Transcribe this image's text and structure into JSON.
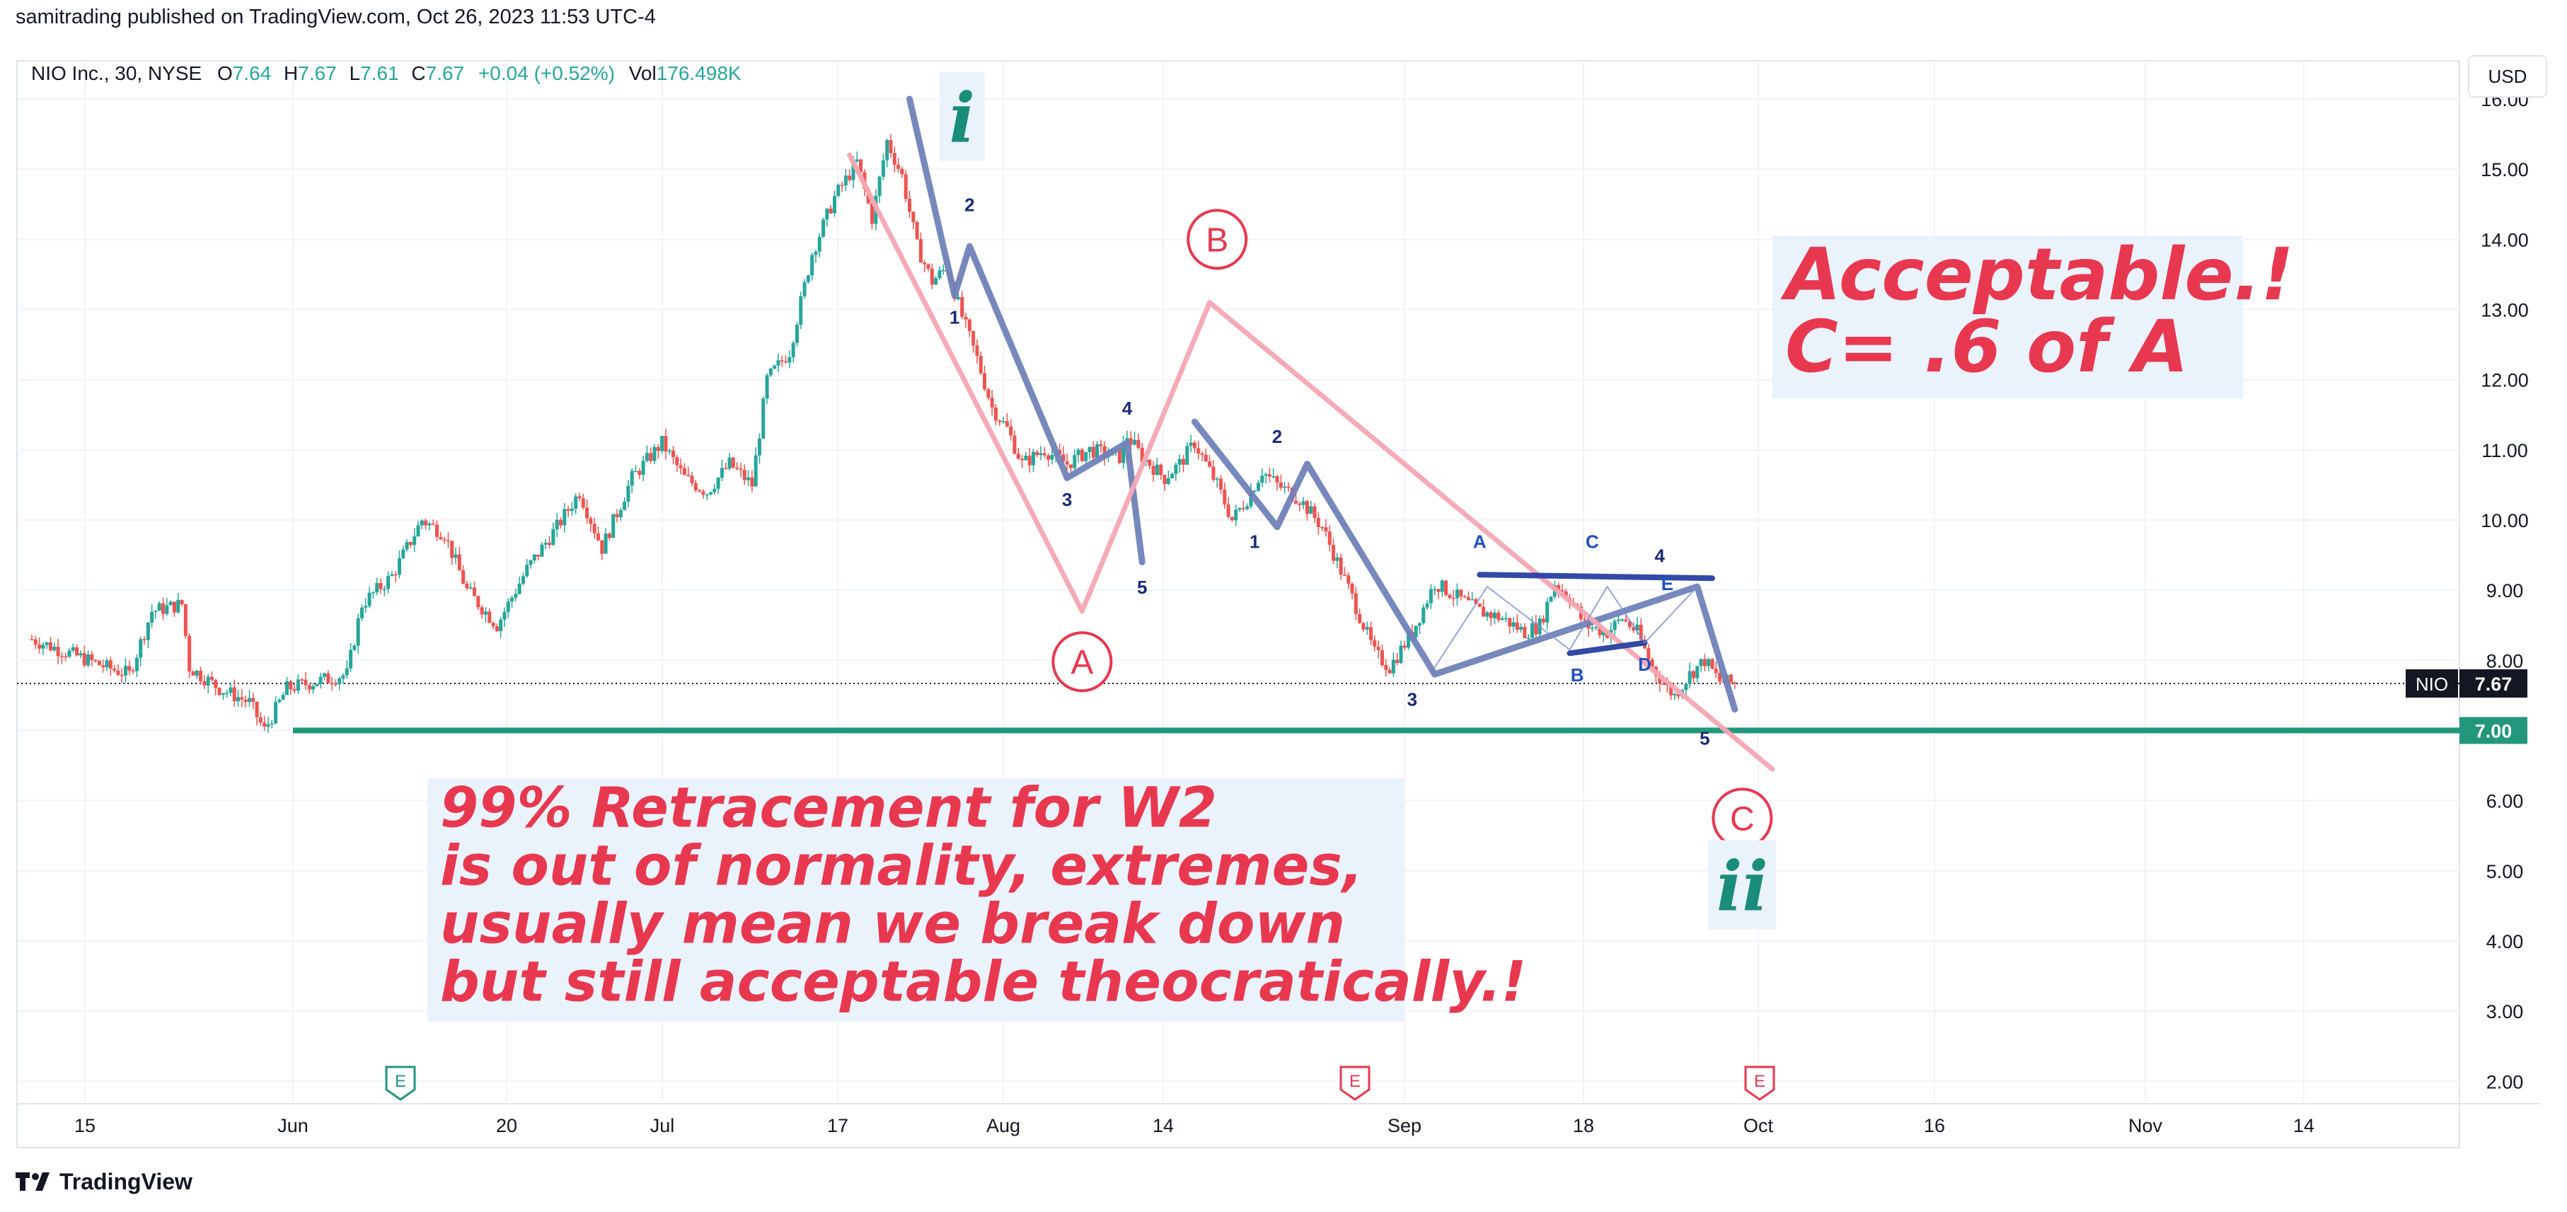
{
  "header": {
    "published": "samitrading published on TradingView.com, Oct 26, 2023 11:53 UTC-4"
  },
  "legend": {
    "symbol": "NIO Inc., 30, NYSE",
    "o_label": "O",
    "o_value": "7.64",
    "h_label": "H",
    "h_value": "7.67",
    "l_label": "L",
    "l_value": "7.61",
    "c_label": "C",
    "c_value": "7.67",
    "change": "+0.04 (+0.52%)",
    "vol_label": "Vol",
    "vol_value": "176.498K"
  },
  "currency_button": "USD",
  "footer": {
    "brand": "TradingView",
    "icon": "tradingview-logo-icon"
  },
  "colors": {
    "up": "#26a69a",
    "down": "#ef5350",
    "wave_blue": "#6f82b8",
    "dark_blue": "#2840a0",
    "abc_pink": "#f4a6b3",
    "support_green": "#22977b",
    "annotation_red": "#e8384f",
    "wave_teal": "#1a8c7a",
    "label_bg": "#eaf2fc"
  },
  "chart_data": {
    "type": "candlestick",
    "symbol": "NIO",
    "interval": "30",
    "ylim": [
      1.6,
      16.2
    ],
    "y_ticks": [
      "2.00",
      "3.00",
      "4.00",
      "5.00",
      "6.00",
      "7.00",
      "8.00",
      "9.00",
      "10.00",
      "11.00",
      "12.00",
      "13.00",
      "14.00",
      "15.00",
      "16.00"
    ],
    "x_ticks": [
      "15",
      "Jun",
      "20",
      "Jul",
      "17",
      "Aug",
      "14",
      "Sep",
      "18",
      "Oct",
      "16",
      "Nov",
      "14"
    ],
    "last_price": {
      "label": "NIO",
      "value": "7.67",
      "y": 7.67
    },
    "support_line": {
      "value": "7.00",
      "y": 7.0
    },
    "earnings_markers": [
      "E",
      "E",
      "E"
    ],
    "price_path": [
      {
        "d": 0,
        "p": 8.3
      },
      {
        "d": 5,
        "p": 8.1
      },
      {
        "d": 10,
        "p": 7.9
      },
      {
        "d": 13,
        "p": 7.8
      },
      {
        "d": 16,
        "p": 8.7
      },
      {
        "d": 20,
        "p": 8.8
      },
      {
        "d": 21,
        "p": 7.9
      },
      {
        "d": 25,
        "p": 7.6
      },
      {
        "d": 29,
        "p": 7.4
      },
      {
        "d": 31,
        "p": 7.0
      },
      {
        "d": 34,
        "p": 7.6
      },
      {
        "d": 38,
        "p": 7.7
      },
      {
        "d": 42,
        "p": 7.8
      },
      {
        "d": 44,
        "p": 8.8
      },
      {
        "d": 48,
        "p": 9.2
      },
      {
        "d": 52,
        "p": 10.0
      },
      {
        "d": 55,
        "p": 9.8
      },
      {
        "d": 58,
        "p": 9.0
      },
      {
        "d": 62,
        "p": 8.5
      },
      {
        "d": 66,
        "p": 9.3
      },
      {
        "d": 70,
        "p": 9.9
      },
      {
        "d": 73,
        "p": 10.4
      },
      {
        "d": 76,
        "p": 9.6
      },
      {
        "d": 80,
        "p": 10.6
      },
      {
        "d": 84,
        "p": 11.1
      },
      {
        "d": 87,
        "p": 10.6
      },
      {
        "d": 90,
        "p": 10.4
      },
      {
        "d": 93,
        "p": 10.8
      },
      {
        "d": 96,
        "p": 10.5
      },
      {
        "d": 98,
        "p": 12.0
      },
      {
        "d": 101,
        "p": 12.4
      },
      {
        "d": 104,
        "p": 13.8
      },
      {
        "d": 107,
        "p": 14.6
      },
      {
        "d": 110,
        "p": 15.1
      },
      {
        "d": 112,
        "p": 14.3
      },
      {
        "d": 114,
        "p": 15.4
      },
      {
        "d": 116,
        "p": 14.9
      },
      {
        "d": 118,
        "p": 13.9
      },
      {
        "d": 120,
        "p": 13.4
      },
      {
        "d": 122,
        "p": 13.6
      },
      {
        "d": 124,
        "p": 12.9
      },
      {
        "d": 126,
        "p": 12.3
      },
      {
        "d": 128,
        "p": 11.6
      },
      {
        "d": 130,
        "p": 11.3
      },
      {
        "d": 132,
        "p": 10.8
      },
      {
        "d": 135,
        "p": 11.0
      },
      {
        "d": 138,
        "p": 10.8
      },
      {
        "d": 141,
        "p": 11.0
      },
      {
        "d": 145,
        "p": 10.9
      },
      {
        "d": 146,
        "p": 11.2
      },
      {
        "d": 148,
        "p": 10.9
      },
      {
        "d": 151,
        "p": 10.6
      },
      {
        "d": 153,
        "p": 10.8
      },
      {
        "d": 155,
        "p": 11.1
      },
      {
        "d": 158,
        "p": 10.5
      },
      {
        "d": 160,
        "p": 10.0
      },
      {
        "d": 162,
        "p": 10.3
      },
      {
        "d": 164,
        "p": 10.7
      },
      {
        "d": 166,
        "p": 10.5
      },
      {
        "d": 169,
        "p": 10.3
      },
      {
        "d": 172,
        "p": 9.9
      },
      {
        "d": 176,
        "p": 8.9
      },
      {
        "d": 179,
        "p": 8.1
      },
      {
        "d": 181,
        "p": 7.9
      },
      {
        "d": 184,
        "p": 8.4
      },
      {
        "d": 187,
        "p": 9.1
      },
      {
        "d": 190,
        "p": 8.9
      },
      {
        "d": 193,
        "p": 8.7
      },
      {
        "d": 196,
        "p": 8.6
      },
      {
        "d": 199,
        "p": 8.4
      },
      {
        "d": 201,
        "p": 8.5
      },
      {
        "d": 203,
        "p": 9.1
      },
      {
        "d": 205,
        "p": 8.9
      },
      {
        "d": 207,
        "p": 8.5
      },
      {
        "d": 210,
        "p": 8.4
      },
      {
        "d": 212,
        "p": 8.6
      },
      {
        "d": 214,
        "p": 8.4
      },
      {
        "d": 216,
        "p": 7.9
      },
      {
        "d": 218,
        "p": 7.6
      },
      {
        "d": 219,
        "p": 7.5
      },
      {
        "d": 221,
        "p": 7.8
      },
      {
        "d": 223,
        "p": 8.0
      },
      {
        "d": 225,
        "p": 7.7
      },
      {
        "d": 227,
        "p": 7.67
      }
    ],
    "series": [
      {
        "name": "wave i",
        "points": [
          {
            "d": 117,
            "y": 16.0
          },
          {
            "d": 123,
            "y": 13.2
          },
          {
            "d": 125,
            "y": 13.9
          },
          {
            "d": 138,
            "y": 10.6
          },
          {
            "d": 146,
            "y": 11.1
          },
          {
            "d": 148,
            "y": 9.4
          }
        ]
      },
      {
        "name": "wave C",
        "points": [
          {
            "d": 155,
            "y": 11.4
          },
          {
            "d": 166,
            "y": 9.9
          },
          {
            "d": 170,
            "y": 10.8
          },
          {
            "d": 187,
            "y": 7.8
          },
          {
            "d": 222,
            "y": 9.05
          },
          {
            "d": 227,
            "y": 7.3
          }
        ]
      },
      {
        "name": "ABC",
        "points": [
          {
            "d": 109,
            "y": 15.2
          },
          {
            "d": 140,
            "y": 8.7
          },
          {
            "d": 157,
            "y": 13.1
          },
          {
            "d": 232,
            "y": 6.45
          }
        ]
      },
      {
        "name": "triangle upper",
        "points": [
          {
            "d": 193,
            "y": 9.22
          },
          {
            "d": 224,
            "y": 9.17
          }
        ]
      },
      {
        "name": "triangle lower",
        "points": [
          {
            "d": 205,
            "y": 8.1
          },
          {
            "d": 215,
            "y": 8.25
          }
        ]
      },
      {
        "name": "triangle thin",
        "points": [
          {
            "d": 187,
            "y": 7.9
          },
          {
            "d": 194,
            "y": 9.05
          },
          {
            "d": 205,
            "y": 8.15
          },
          {
            "d": 210,
            "y": 9.05
          },
          {
            "d": 215,
            "y": 8.25
          },
          {
            "d": 222,
            "y": 9.05
          }
        ]
      }
    ],
    "wave_labels": [
      {
        "text": "2",
        "d": 125,
        "y": 14.4,
        "color": "#1a2a7a"
      },
      {
        "text": "1",
        "d": 123,
        "y": 12.8,
        "color": "#1a2a7a"
      },
      {
        "text": "3",
        "d": 138,
        "y": 10.2,
        "color": "#1a2a7a"
      },
      {
        "text": "4",
        "d": 146,
        "y": 11.5,
        "color": "#1a2a7a"
      },
      {
        "text": "5",
        "d": 148,
        "y": 8.95,
        "color": "#1a2a7a"
      },
      {
        "text": "2",
        "d": 166,
        "y": 11.1,
        "color": "#1a2a7a"
      },
      {
        "text": "1",
        "d": 163,
        "y": 9.6,
        "color": "#1a2a7a"
      },
      {
        "text": "3",
        "d": 184,
        "y": 7.35,
        "color": "#1a2a7a"
      },
      {
        "text": "4",
        "d": 217,
        "y": 9.4,
        "color": "#1a2a7a"
      },
      {
        "text": "5",
        "d": 223,
        "y": 6.8,
        "color": "#1a2a7a"
      },
      {
        "text": "A",
        "d": 193,
        "y": 9.6,
        "color": "#2050c0"
      },
      {
        "text": "C",
        "d": 208,
        "y": 9.6,
        "color": "#2050c0"
      },
      {
        "text": "B",
        "d": 206,
        "y": 7.7,
        "color": "#2050c0"
      },
      {
        "text": "D",
        "d": 215,
        "y": 7.85,
        "color": "#2050c0"
      },
      {
        "text": "E",
        "d": 218,
        "y": 9.0,
        "color": "#2050c0"
      }
    ],
    "circle_labels": [
      {
        "text": "A",
        "d": 140,
        "y": 7.98
      },
      {
        "text": "B",
        "d": 158,
        "y": 14.0
      },
      {
        "text": "C",
        "d": 228,
        "y": 5.75
      }
    ],
    "degree_labels": [
      {
        "text": "i",
        "d": 124,
        "y": 15.65
      },
      {
        "text": "ii",
        "d": 228,
        "y": 4.7
      }
    ],
    "annotations": [
      {
        "lines": [
          "99% Retracement for W2",
          "is out of normality, extremes,",
          "usually mean we break down",
          "but still acceptable theocratically.!"
        ]
      },
      {
        "lines": [
          "Acceptable.!",
          "C= .6 of A"
        ]
      }
    ]
  }
}
